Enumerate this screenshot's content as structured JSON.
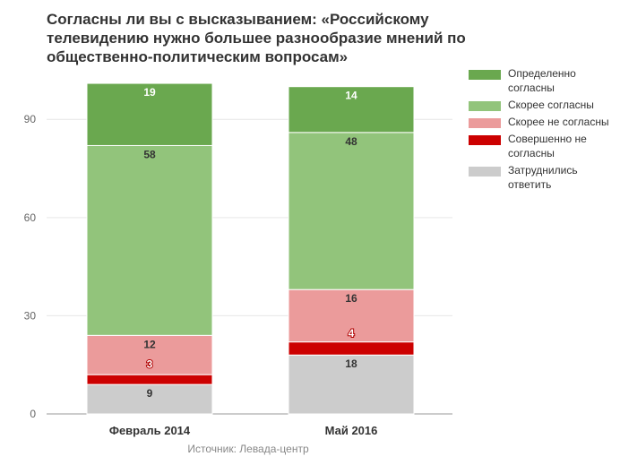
{
  "title": "Согласны ли вы с высказыванием: «Российскому телевидению нужно большее разнообразие мнений по общественно-политическим вопросам»",
  "source": "Источник: Левада-центр",
  "chart_data": {
    "type": "bar",
    "stacked": true,
    "title": "Согласны ли вы с высказыванием: «Российскому телевидению нужно большее разнообразие мнений по общественно-политическим вопросам»",
    "categories": [
      "Февраль 2014",
      "Май 2016"
    ],
    "yticks": [
      0,
      30,
      60,
      90
    ],
    "ylim": [
      0,
      100
    ],
    "grid": true,
    "legend_position": "right",
    "series": [
      {
        "name": "Затруднились ответить",
        "color": "#cccccc",
        "values": [
          9,
          18
        ],
        "labels": [
          "9",
          "18"
        ],
        "label_color": "#333333"
      },
      {
        "name": "Совершенно не согласны",
        "color": "#cc0000",
        "values": [
          3,
          4
        ],
        "labels": [
          "3",
          "4"
        ],
        "label_color": "#ffffff"
      },
      {
        "name": "Скорее не согласны",
        "color": "#eb9b9b",
        "values": [
          12,
          16
        ],
        "labels": [
          "12",
          "16"
        ],
        "label_color": "#333333"
      },
      {
        "name": "Скорее согласны",
        "color": "#92c47b",
        "values": [
          58,
          48
        ],
        "labels": [
          "58",
          "48"
        ],
        "label_color": "#333333"
      },
      {
        "name": "Определенно согласны",
        "color": "#6aa84f",
        "values": [
          19,
          14
        ],
        "labels": [
          "19",
          "14"
        ],
        "label_color": "#ffffff"
      }
    ]
  },
  "legend": {
    "items": [
      {
        "label": "Определенно согласны",
        "color": "#6aa84f"
      },
      {
        "label": "Скорее согласны",
        "color": "#92c47b"
      },
      {
        "label": "Скорее не согласны",
        "color": "#eb9b9b"
      },
      {
        "label": "Совершенно не согласны",
        "color": "#cc0000"
      },
      {
        "label": "Затруднились ответить",
        "color": "#cccccc"
      }
    ]
  }
}
